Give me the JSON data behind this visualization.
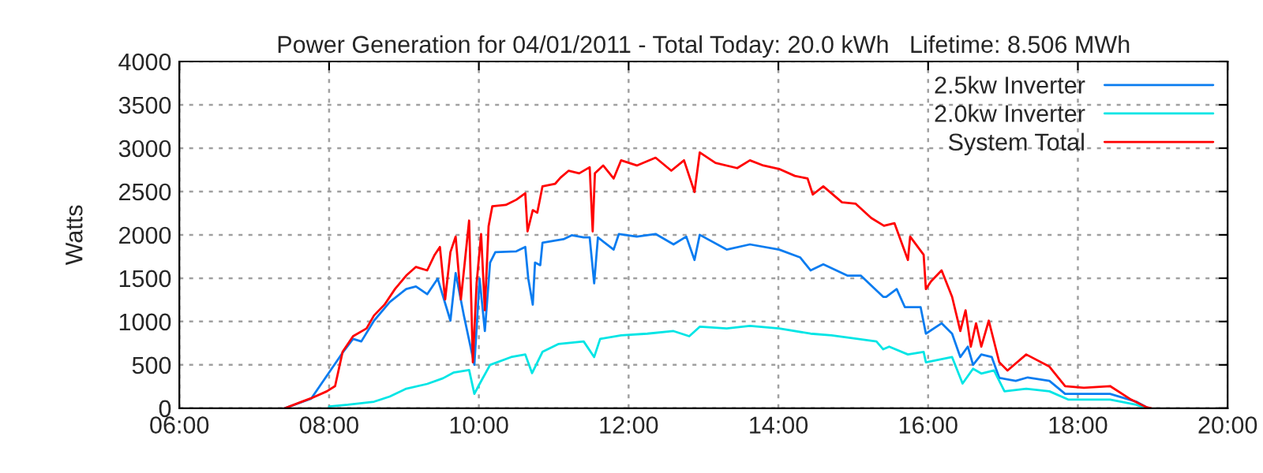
{
  "chart_data": {
    "type": "line",
    "title": "Power Generation for 04/01/2011 - Total Today: 20.0 kWh   Lifetime: 8.506 MWh",
    "ylabel": "Watts",
    "xlim": [
      6,
      20
    ],
    "xticks": [
      {
        "value": 6,
        "label": "06:00"
      },
      {
        "value": 8,
        "label": "08:00"
      },
      {
        "value": 10,
        "label": "10:00"
      },
      {
        "value": 12,
        "label": "12:00"
      },
      {
        "value": 14,
        "label": "14:00"
      },
      {
        "value": 16,
        "label": "16:00"
      },
      {
        "value": 18,
        "label": "18:00"
      },
      {
        "value": 20,
        "label": "20:00"
      }
    ],
    "ylim": [
      0,
      4000
    ],
    "yticks": [
      0,
      500,
      1000,
      1500,
      2000,
      2500,
      3000,
      3500,
      4000
    ],
    "grid": true,
    "legend": "top right",
    "line_style": "solid",
    "marker": "none",
    "series": [
      {
        "name": "2.5kw Inverter",
        "color": "#0a7cf0",
        "x": [
          7.41,
          7.76,
          8.08,
          8.18,
          8.32,
          8.43,
          8.6,
          8.81,
          9.03,
          9.16,
          9.31,
          9.45,
          9.62,
          9.69,
          9.8,
          9.94,
          10.01,
          10.08,
          10.15,
          10.22,
          10.5,
          10.62,
          10.66,
          10.72,
          10.75,
          10.82,
          10.85,
          11.13,
          11.24,
          11.4,
          11.48,
          11.54,
          11.59,
          11.8,
          11.87,
          12.11,
          12.36,
          12.6,
          12.77,
          12.88,
          12.95,
          13.31,
          13.62,
          14.01,
          14.29,
          14.43,
          14.6,
          14.92,
          15.1,
          15.4,
          15.44,
          15.58,
          15.69,
          15.9,
          15.97,
          16.18,
          16.32,
          16.43,
          16.53,
          16.6,
          16.71,
          16.85,
          16.95,
          17.17,
          17.33,
          17.62,
          17.83,
          18.43,
          18.78,
          18.92
        ],
        "values": [
          0,
          110,
          null,
          640,
          800,
          770,
          1010,
          1225,
          1375,
          1405,
          1315,
          1495,
          1010,
          1560,
          1070,
          500,
          1495,
          890,
          1680,
          1800,
          1810,
          1860,
          1495,
          1195,
          1680,
          1650,
          1910,
          1950,
          1995,
          1970,
          1970,
          1440,
          1970,
          1830,
          2010,
          1980,
          2010,
          1890,
          1980,
          1710,
          2000,
          1830,
          1890,
          1830,
          1740,
          1590,
          1660,
          1530,
          1530,
          1285,
          1285,
          1375,
          1165,
          1165,
          860,
          980,
          860,
          590,
          710,
          500,
          620,
          590,
          350,
          315,
          355,
          315,
          165,
          165,
          75,
          10
        ]
      },
      {
        "name": "2.0kw Inverter",
        "color": "#00e5e5",
        "x": [
          8.0,
          8.25,
          8.6,
          8.81,
          9.03,
          9.31,
          9.52,
          9.66,
          9.87,
          9.94,
          10.01,
          10.15,
          10.43,
          10.62,
          10.71,
          10.85,
          11.06,
          11.4,
          11.54,
          11.62,
          11.9,
          12.25,
          12.6,
          12.81,
          12.95,
          13.31,
          13.62,
          14.01,
          14.43,
          14.71,
          15.06,
          15.31,
          15.4,
          15.48,
          15.73,
          15.94,
          15.97,
          16.32,
          16.46,
          16.6,
          16.71,
          16.88,
          17.02,
          17.31,
          17.62,
          17.87,
          18.43,
          18.78,
          18.88
        ],
        "values": [
          20,
          40,
          75,
          135,
          225,
          280,
          345,
          410,
          440,
          165,
          280,
          500,
          590,
          620,
          405,
          650,
          740,
          770,
          590,
          800,
          840,
          860,
          890,
          830,
          940,
          920,
          950,
          920,
          860,
          840,
          800,
          770,
          680,
          710,
          620,
          650,
          530,
          590,
          285,
          455,
          400,
          435,
          195,
          225,
          195,
          100,
          100,
          40,
          10
        ]
      },
      {
        "name": "System Total",
        "color": "#ff0000",
        "x": [
          7.41,
          7.62,
          7.76,
          7.97,
          8.08,
          8.18,
          8.32,
          8.5,
          8.6,
          8.74,
          8.88,
          9.03,
          9.16,
          9.31,
          9.41,
          9.48,
          9.55,
          9.62,
          9.69,
          9.76,
          9.87,
          9.92,
          9.97,
          10.03,
          10.08,
          10.13,
          10.18,
          10.36,
          10.5,
          10.62,
          10.65,
          10.72,
          10.78,
          10.85,
          11.02,
          11.09,
          11.2,
          11.34,
          11.48,
          11.52,
          11.55,
          11.66,
          11.8,
          11.9,
          12.11,
          12.36,
          12.57,
          12.74,
          12.88,
          12.95,
          13.16,
          13.45,
          13.62,
          13.8,
          14.01,
          14.22,
          14.39,
          14.46,
          14.6,
          14.85,
          15.03,
          15.24,
          15.41,
          15.55,
          15.73,
          15.76,
          15.94,
          15.97,
          16.04,
          16.18,
          16.32,
          16.43,
          16.5,
          16.57,
          16.64,
          16.71,
          16.81,
          16.95,
          17.06,
          17.31,
          17.62,
          17.83,
          18.08,
          18.43,
          18.71,
          18.92,
          18.98
        ],
        "values": [
          0,
          70,
          115,
          195,
          255,
          650,
          830,
          920,
          1070,
          1195,
          1375,
          1530,
          1630,
          1590,
          1770,
          1860,
          1255,
          1800,
          1980,
          1255,
          2165,
          530,
          1440,
          2010,
          1130,
          2100,
          2330,
          2345,
          2405,
          2480,
          2040,
          2285,
          2255,
          2560,
          2590,
          2660,
          2740,
          2710,
          2780,
          2040,
          2710,
          2800,
          2650,
          2860,
          2800,
          2890,
          2740,
          2860,
          2495,
          2950,
          2830,
          2770,
          2860,
          2800,
          2760,
          2680,
          2650,
          2465,
          2560,
          2375,
          2360,
          2195,
          2105,
          2135,
          1710,
          1980,
          1770,
          1375,
          1465,
          1590,
          1285,
          890,
          1130,
          710,
          980,
          710,
          1010,
          530,
          435,
          620,
          480,
          255,
          235,
          255,
          100,
          10,
          0
        ]
      }
    ]
  }
}
